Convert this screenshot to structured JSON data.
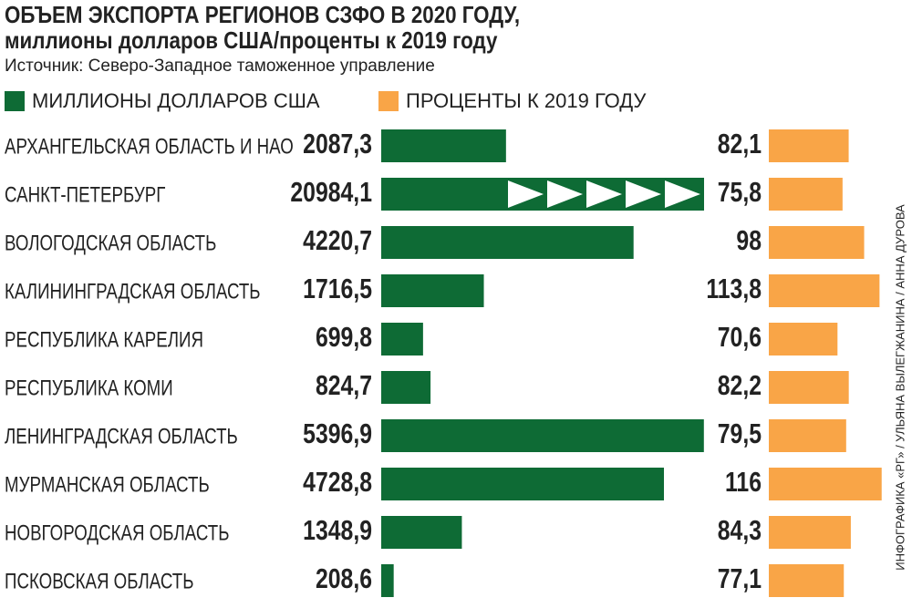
{
  "chart_data": {
    "type": "bar",
    "title": "ОБЪЕМ ЭКСПОРТА РЕГИОНОВ СЗФО В 2020 ГОДУ,",
    "subtitle": "миллионы долларов США/проценты к 2019 году",
    "source": "Источник:  Северо-Западное таможенное управление",
    "credit": "ИНФОГРАФИКА «РГ» / УЛЬЯНА ВЫЛЕГЖАНИНА / АННА ДУРОВА",
    "categories": [
      "АРХАНГЕЛЬСКАЯ ОБЛАСТЬ И НАО",
      "САНКТ-ПЕТЕРБУРГ",
      "ВОЛОГОДСКАЯ ОБЛАСТЬ",
      "КАЛИНИНГРАДСКАЯ ОБЛАСТЬ",
      "РЕСПУБЛИКА КАРЕЛИЯ",
      "РЕСПУБЛИКА КОМИ",
      "ЛЕНИНГРАДСКАЯ ОБЛАСТЬ",
      "МУРМАНСКАЯ ОБЛАСТЬ",
      "НОВГОРОДСКАЯ ОБЛАСТЬ",
      "ПСКОВСКАЯ ОБЛАСТЬ"
    ],
    "series": [
      {
        "name": "МИЛЛИОНЫ ДОЛЛАРОВ США",
        "color": "#0e6b35",
        "xlim": [
          0,
          5400
        ],
        "values": [
          2087.3,
          20984.1,
          4220.7,
          1716.5,
          699.8,
          824.7,
          5396.9,
          4728.8,
          1348.9,
          208.6
        ],
        "value_labels": [
          "2087,3",
          "20984,1",
          "4220,7",
          "1716,5",
          "699,8",
          "824,7",
          "5396,9",
          "4728,8",
          "1348,9",
          "208,6"
        ]
      },
      {
        "name": "ПРОЦЕНТЫ К 2019 ГОДУ",
        "color": "#f9a547",
        "xlim": [
          0,
          120
        ],
        "values": [
          82.1,
          75.8,
          98,
          113.8,
          70.6,
          82.2,
          79.5,
          116,
          84.3,
          77.1
        ],
        "value_labels": [
          "82,1",
          "75,8",
          "98",
          "113,8",
          "70,6",
          "82,2",
          "79,5",
          "116",
          "84,3",
          "77,1"
        ]
      }
    ]
  }
}
